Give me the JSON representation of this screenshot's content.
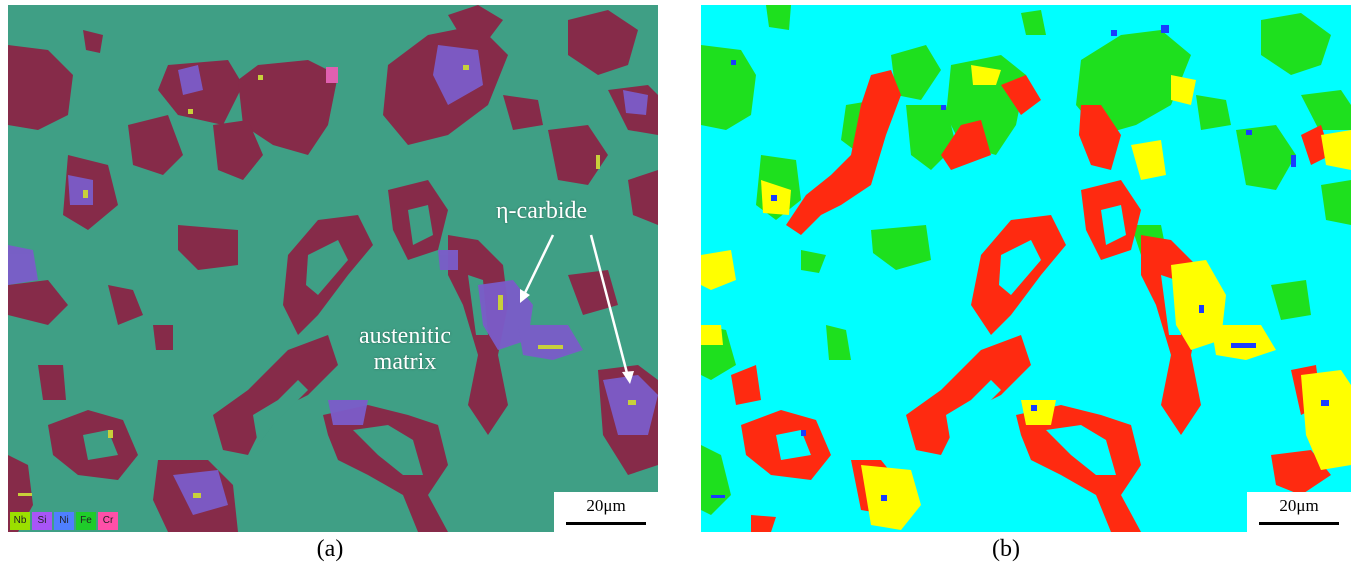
{
  "figure": {
    "panel_a": {
      "caption": "(a)",
      "scale_bar": "20μm",
      "annotations": {
        "carbide": "η-carbide",
        "matrix_line1": "austenitic",
        "matrix_line2": "matrix"
      },
      "legend": [
        {
          "label": "Nb",
          "color": "#9be000"
        },
        {
          "label": "Si",
          "color": "#a855f7"
        },
        {
          "label": "Ni",
          "color": "#4f7fff"
        },
        {
          "label": "Fe",
          "color": "#1fcc2a"
        },
        {
          "label": "Cr",
          "color": "#ff4fa8"
        }
      ],
      "colors": {
        "matrix": "#3f9f85",
        "cr_carbide": "#8a2546",
        "eta_carbide": "#7b5cc9",
        "nb_carbide": "#c8d03a"
      }
    },
    "panel_b": {
      "caption": "(b)",
      "scale_bar": "20μm",
      "colors": {
        "matrix": "#00ffff",
        "red_phase": "#ff2a10",
        "green_phase": "#1ee01e",
        "yellow_phase": "#ffff00",
        "blue_phase": "#1a3cff"
      }
    }
  }
}
